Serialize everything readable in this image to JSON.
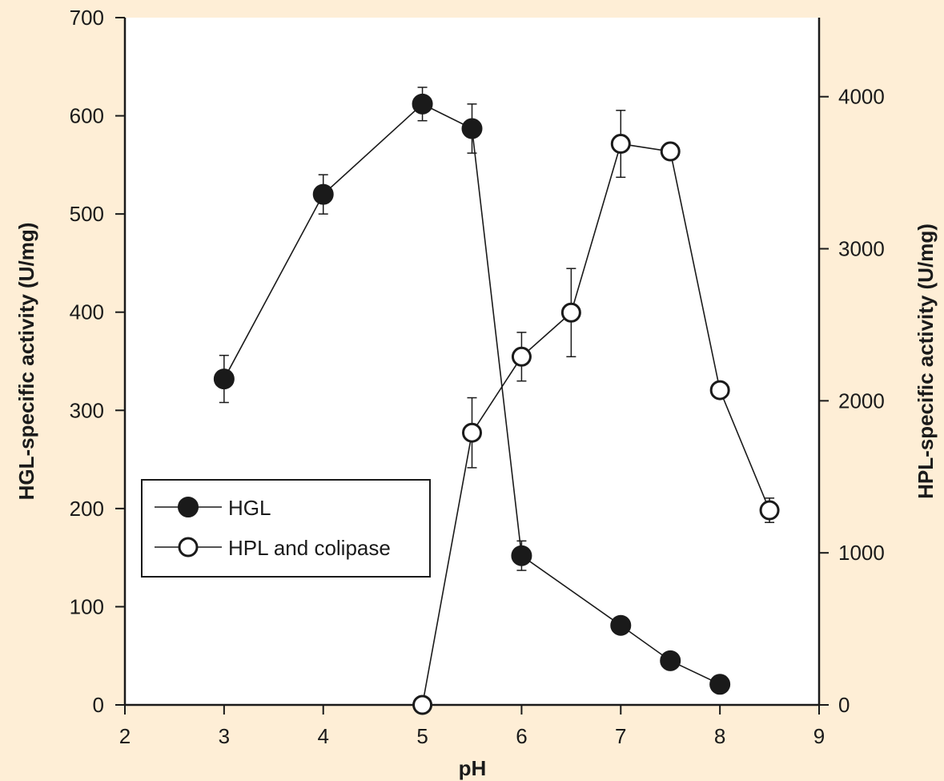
{
  "chart_data": {
    "type": "scatter",
    "xlabel": "pH",
    "ylabel_left": "HGL-specific activity (U/mg)",
    "ylabel_right": "HPL-specific activity (U/mg)",
    "xlim": [
      2,
      9
    ],
    "ylim_left": [
      0,
      700
    ],
    "ylim_right": [
      0,
      4000
    ],
    "x_ticks": [
      2,
      3,
      4,
      5,
      6,
      7,
      8,
      9
    ],
    "y_ticks_left": [
      0,
      100,
      200,
      300,
      400,
      500,
      600,
      700
    ],
    "y_ticks_right": [
      0,
      1000,
      2000,
      3000,
      4000
    ],
    "grid": false,
    "legend_position": "lower-left",
    "series": [
      {
        "name": "HGL",
        "axis": "left",
        "marker": "filled-circle",
        "x": [
          3,
          4,
          5,
          5.5,
          6,
          7,
          7.5,
          8
        ],
        "y": [
          332,
          520,
          612,
          587,
          152,
          81,
          45,
          21
        ],
        "err": [
          24,
          20,
          17,
          25,
          15,
          0,
          0,
          0
        ]
      },
      {
        "name": "HPL and colipase",
        "axis": "right",
        "marker": "open-circle",
        "x": [
          5,
          5.5,
          6,
          6.5,
          7,
          7.5,
          8,
          8.5
        ],
        "y": [
          0,
          1790,
          2290,
          2580,
          3690,
          3640,
          2070,
          1280
        ],
        "err": [
          0,
          230,
          160,
          290,
          220,
          40,
          0,
          80
        ]
      }
    ]
  }
}
